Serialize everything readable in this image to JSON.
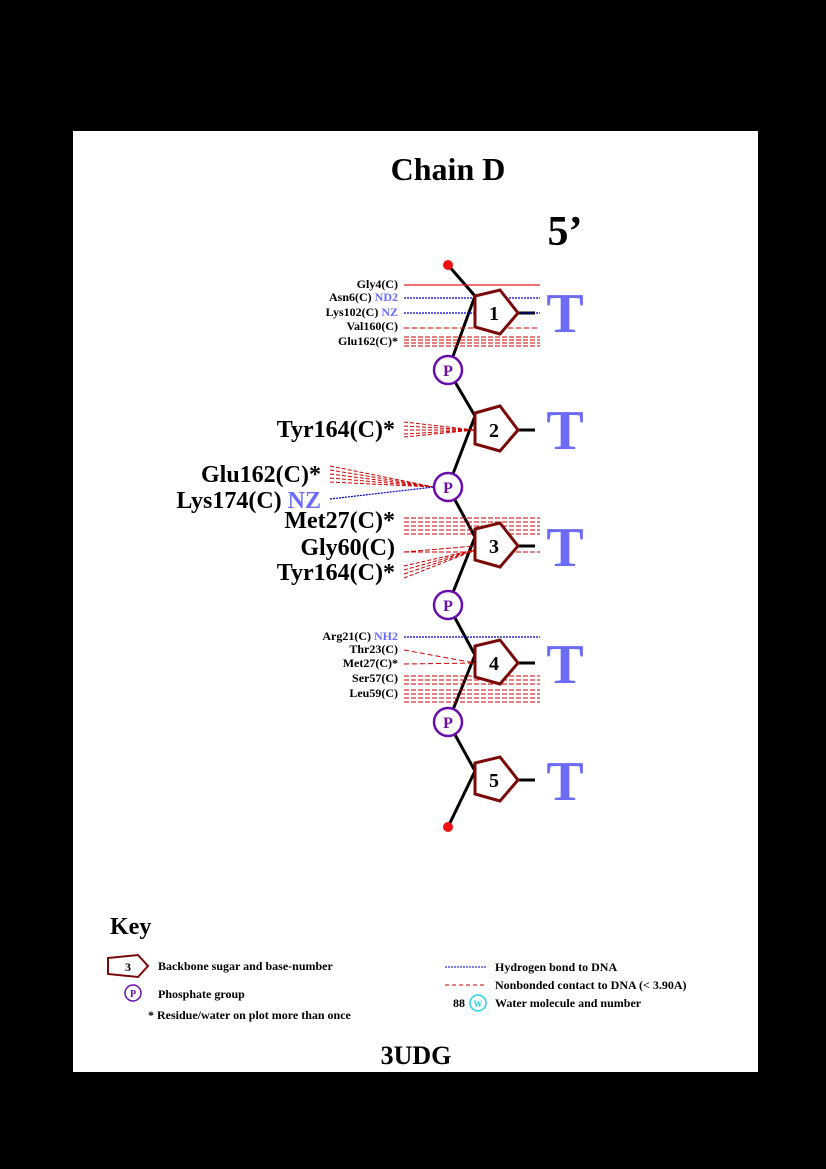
{
  "title": "Chain D",
  "end_label": "5’",
  "pdb_code": "3UDG",
  "nucleotides": [
    {
      "number": "1",
      "base": "T"
    },
    {
      "number": "2",
      "base": "T"
    },
    {
      "number": "3",
      "base": "T"
    },
    {
      "number": "4",
      "base": "T"
    },
    {
      "number": "5",
      "base": "T"
    }
  ],
  "phosphate_label": "P",
  "residues": {
    "gly4": {
      "name": "Gly4(C)",
      "atom": ""
    },
    "asn6": {
      "name": "Asn6(C)",
      "atom": "ND2"
    },
    "lys102": {
      "name": "Lys102(C)",
      "atom": "NZ"
    },
    "val160": {
      "name": "Val160(C)",
      "atom": ""
    },
    "glu162a": {
      "name": "Glu162(C)*",
      "atom": ""
    },
    "tyr164a": {
      "name": "Tyr164(C)*",
      "atom": ""
    },
    "glu162b": {
      "name": "Glu162(C)*",
      "atom": ""
    },
    "lys174": {
      "name": "Lys174(C)",
      "atom": "NZ"
    },
    "met27a": {
      "name": "Met27(C)*",
      "atom": ""
    },
    "gly60": {
      "name": "Gly60(C)",
      "atom": ""
    },
    "tyr164b": {
      "name": "Tyr164(C)*",
      "atom": ""
    },
    "arg21": {
      "name": "Arg21(C)",
      "atom": "NH2"
    },
    "thr23": {
      "name": "Thr23(C)",
      "atom": ""
    },
    "met27b": {
      "name": "Met27(C)*",
      "atom": ""
    },
    "ser57": {
      "name": "Ser57(C)",
      "atom": ""
    },
    "leu59": {
      "name": "Leu59(C)",
      "atom": ""
    }
  },
  "key": {
    "heading": "Key",
    "sugar_sample": "3",
    "sugar_label": "Backbone sugar and base-number",
    "phosphate_sample": "P",
    "phosphate_label": "Phosphate group",
    "multi_label": "* Residue/water on plot more than once",
    "hbond_label": "Hydrogen bond to DNA",
    "nonbonded_label": "Nonbonded contact to DNA (< 3.90A)",
    "water_number": "88",
    "water_sample": "W",
    "water_label": "Water molecule and number"
  },
  "colors": {
    "sugar": "#7a0a0a",
    "phosphate": "#6a0dad",
    "hbond": "#0000cc",
    "nonbonded": "#cc0000",
    "base": "#6b6bf5",
    "atom": "#6b6bff",
    "water": "#22d3e0",
    "end_dot": "#ee1111"
  }
}
